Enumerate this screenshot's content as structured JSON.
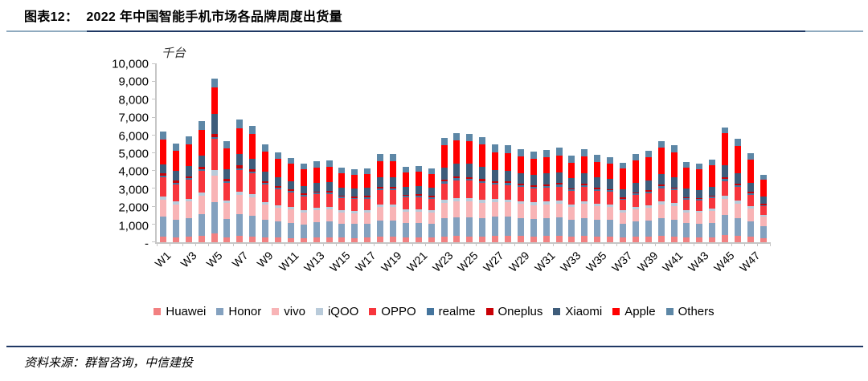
{
  "header": {
    "title_prefix": "图表12：",
    "title": "2022 年中国智能手机市场各品牌周度出货量"
  },
  "footer": {
    "source": "资料来源：群智咨询，中信建投"
  },
  "colors": {
    "divider_navy": "#1F3864",
    "divider_ends": "#8FAABF",
    "axis_gray": "#C6C6C6"
  },
  "chart_data": {
    "type": "bar",
    "stacked": true,
    "title": "2022 年中国智能手机市场各品牌周度出货量",
    "unit_label": "千台",
    "xlabel": "",
    "ylabel": "千台",
    "ylim": [
      0,
      10000
    ],
    "grid": false,
    "legend_position": "bottom",
    "categories": [
      "W1",
      "W2",
      "W3",
      "W4",
      "W5",
      "W6",
      "W7",
      "W8",
      "W9",
      "W10",
      "W11",
      "W12",
      "W13",
      "W14",
      "W15",
      "W16",
      "W17",
      "W18",
      "W19",
      "W20",
      "W21",
      "W22",
      "W23",
      "W24",
      "W25",
      "W26",
      "W27",
      "W28",
      "W29",
      "W30",
      "W31",
      "W32",
      "W33",
      "W34",
      "W35",
      "W36",
      "W37",
      "W38",
      "W39",
      "W40",
      "W41",
      "W42",
      "W43",
      "W44",
      "W45",
      "W46",
      "W47",
      "W48"
    ],
    "x_tick_labels": [
      "W1",
      "W3",
      "W5",
      "W7",
      "W9",
      "W11",
      "W13",
      "W15",
      "W17",
      "W19",
      "W21",
      "W23",
      "W25",
      "W27",
      "W29",
      "W31",
      "W33",
      "W35",
      "W37",
      "W39",
      "W41",
      "W43",
      "W45",
      "W47"
    ],
    "y_ticks": [
      {
        "label": "10,000",
        "value": 10000
      },
      {
        "label": "9,000",
        "value": 9000
      },
      {
        "label": "8,000",
        "value": 8000
      },
      {
        "label": "7,000",
        "value": 7000
      },
      {
        "label": "6,000",
        "value": 6000
      },
      {
        "label": "5,000",
        "value": 5000
      },
      {
        "label": "4,000",
        "value": 4000
      },
      {
        "label": "3,000",
        "value": 3000
      },
      {
        "label": "2,000",
        "value": 2000
      },
      {
        "label": "1,000",
        "value": 1000
      },
      {
        "label": "-",
        "value": 0
      }
    ],
    "series": [
      {
        "name": "Huawei",
        "color": "#F28081",
        "values": [
          330,
          280,
          300,
          340,
          480,
          285,
          345,
          330,
          275,
          255,
          240,
          220,
          275,
          275,
          250,
          245,
          250,
          295,
          300,
          255,
          260,
          250,
          320,
          340,
          335,
          325,
          360,
          355,
          340,
          330,
          340,
          345,
          315,
          340,
          320,
          310,
          265,
          295,
          310,
          340,
          325,
          270,
          265,
          280,
          385,
          350,
          300,
          230
        ]
      },
      {
        "name": "Honor",
        "color": "#84A1BF",
        "values": [
          1120,
          1000,
          1070,
          1225,
          1770,
          1025,
          1240,
          1180,
          990,
          910,
          855,
          790,
          865,
          875,
          800,
          780,
          790,
          940,
          935,
          810,
          815,
          790,
          1025,
          1075,
          1070,
          1035,
          1070,
          1065,
          1025,
          995,
          1015,
          1035,
          945,
          1025,
          955,
          935,
          780,
          865,
          900,
          1000,
          955,
          790,
          770,
          815,
          1130,
          1015,
          875,
          665
        ]
      },
      {
        "name": "vivo",
        "color": "#F8B4B6",
        "values": [
          940,
          860,
          920,
          1055,
          1490,
          885,
          1070,
          1015,
          855,
          785,
          735,
          680,
          685,
          690,
          630,
          615,
          620,
          745,
          740,
          640,
          645,
          620,
          850,
          890,
          885,
          855,
          825,
          815,
          790,
          765,
          780,
          795,
          730,
          790,
          735,
          720,
          625,
          695,
          720,
          800,
          765,
          630,
          615,
          650,
          905,
          810,
          700,
          530
        ]
      },
      {
        "name": "iQOO",
        "color": "#B9CBDA",
        "values": [
          180,
          155,
          165,
          190,
          300,
          160,
          195,
          185,
          155,
          140,
          135,
          125,
          135,
          140,
          125,
          125,
          125,
          150,
          150,
          130,
          130,
          125,
          175,
          185,
          185,
          175,
          165,
          165,
          160,
          155,
          155,
          160,
          145,
          160,
          145,
          145,
          125,
          140,
          145,
          160,
          155,
          125,
          125,
          130,
          180,
          160,
          140,
          105
        ]
      },
      {
        "name": "OPPO",
        "color": "#F7353C",
        "values": [
          1070,
          970,
          1040,
          1190,
          1780,
          1000,
          1210,
          1145,
          960,
          885,
          830,
          770,
          730,
          735,
          670,
          655,
          665,
          790,
          795,
          680,
          690,
          665,
          935,
          985,
          975,
          945,
          825,
          815,
          785,
          765,
          780,
          795,
          730,
          785,
          735,
          720,
          580,
          645,
          670,
          740,
          710,
          585,
          570,
          605,
          840,
          755,
          650,
          495
        ]
      },
      {
        "name": "realme",
        "color": "#44749D",
        "values": [
          90,
          85,
          90,
          100,
          100,
          85,
          105,
          100,
          85,
          75,
          70,
          65,
          90,
          90,
          85,
          80,
          85,
          100,
          100,
          85,
          85,
          85,
          105,
          110,
          110,
          105,
          110,
          110,
          105,
          100,
          105,
          105,
          95,
          105,
          100,
          95,
          80,
          90,
          95,
          105,
          100,
          80,
          80,
          85,
          115,
          105,
          90,
          70
        ]
      },
      {
        "name": "Oneplus",
        "color": "#C90006",
        "values": [
          150,
          110,
          120,
          135,
          150,
          115,
          140,
          130,
          110,
          100,
          95,
          90,
          70,
          70,
          65,
          60,
          60,
          75,
          75,
          65,
          65,
          60,
          100,
          105,
          105,
          100,
          80,
          80,
          80,
          75,
          80,
          80,
          75,
          80,
          75,
          70,
          60,
          70,
          70,
          80,
          75,
          65,
          60,
          65,
          90,
          80,
          70,
          55
        ]
      },
      {
        "name": "Xiaomi",
        "color": "#3E5C7A",
        "values": [
          480,
          530,
          565,
          645,
          1160,
          540,
          655,
          620,
          520,
          480,
          450,
          420,
          500,
          505,
          460,
          450,
          455,
          545,
          550,
          465,
          475,
          455,
          700,
          740,
          730,
          710,
          630,
          625,
          605,
          585,
          600,
          610,
          560,
          605,
          565,
          550,
          465,
          520,
          540,
          600,
          570,
          470,
          460,
          490,
          675,
          610,
          525,
          400
        ]
      },
      {
        "name": "Apple",
        "color": "#FF0000",
        "values": [
          1410,
          1165,
          1250,
          1430,
          1450,
          1200,
          1445,
          1375,
          1155,
          1060,
          1000,
          925,
          840,
          855,
          780,
          760,
          770,
          915,
          910,
          785,
          795,
          770,
          1230,
          1290,
          1280,
          1240,
          995,
          985,
          945,
          920,
          935,
          955,
          870,
          945,
          880,
          865,
          1155,
          1285,
          1340,
          1480,
          1415,
          1170,
          1145,
          1210,
          1805,
          1510,
          1300,
          985
        ]
      },
      {
        "name": "Others",
        "color": "#5D87A6",
        "values": [
          430,
          395,
          430,
          490,
          520,
          405,
          495,
          470,
          395,
          360,
          340,
          315,
          360,
          365,
          335,
          330,
          330,
          395,
          395,
          335,
          340,
          330,
          410,
          430,
          425,
          410,
          440,
          435,
          415,
          410,
          410,
          420,
          385,
          415,
          390,
          390,
          315,
          345,
          360,
          395,
          380,
          315,
          310,
          320,
          325,
          405,
          350,
          265
        ]
      }
    ]
  }
}
